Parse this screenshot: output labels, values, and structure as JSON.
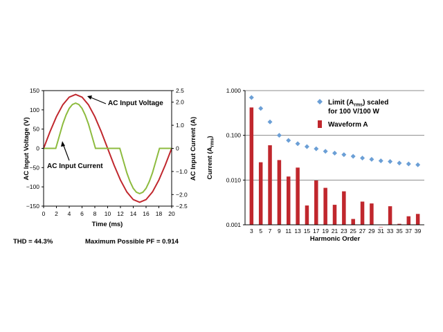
{
  "colors": {
    "voltage": "#c0272d",
    "current": "#8dbb3e",
    "harmonic_bar": "#c0272d",
    "limit_marker": "#6b9fd6",
    "grid": "#8c8c8c",
    "axis": "#000000"
  },
  "footer": {
    "thd": "THD = 44.3%",
    "pf": "Maximum Possible PF = 0.914"
  },
  "chart_data": [
    {
      "type": "line",
      "xlabel": "Time (ms)",
      "ylabel": "AC Input Voltage (V)",
      "y2label": "AC Input Current (A)",
      "xlim": [
        0,
        20
      ],
      "ylim": [
        -150,
        150
      ],
      "y2lim": [
        -2.5,
        2.5
      ],
      "x_ticks": [
        "0",
        "2",
        "4",
        "6",
        "8",
        "10",
        "12",
        "14",
        "16",
        "18",
        "20"
      ],
      "y_ticks": [
        "150",
        "100",
        "50",
        "0",
        "−50",
        "−100",
        "−150"
      ],
      "y2_ticks": [
        "2.5",
        "2.0",
        "1.0",
        "0",
        "−1.0",
        "−2.0",
        "−2.5"
      ],
      "grid": false,
      "annotations": [
        {
          "text": "AC Input Voltage",
          "target_series": 0
        },
        {
          "text": "AC Input Current",
          "target_series": 1
        }
      ],
      "series": [
        {
          "name": "AC Input Voltage",
          "axis": "left",
          "x": [
            0,
            1,
            2,
            3,
            4,
            5,
            6,
            7,
            8,
            9,
            10,
            11,
            12,
            13,
            14,
            15,
            16,
            17,
            18,
            19,
            20
          ],
          "y": [
            0,
            43.3,
            82.3,
            113.3,
            133.1,
            140,
            133.1,
            113.3,
            82.3,
            43.3,
            0,
            -43.3,
            -82.3,
            -113.3,
            -133.1,
            -140,
            -133.1,
            -113.3,
            -82.3,
            -43.3,
            0
          ]
        },
        {
          "name": "AC Input Current",
          "axis": "right",
          "x": [
            0,
            1.9,
            2.5,
            3,
            3.5,
            4,
            4.5,
            5,
            5.5,
            6,
            6.5,
            7,
            7.5,
            8.1,
            10,
            11.9,
            12.5,
            13,
            13.5,
            14,
            14.5,
            15,
            15.5,
            16,
            16.5,
            17,
            17.5,
            18.1,
            20
          ],
          "y": [
            0,
            0,
            0.58,
            1.06,
            1.44,
            1.73,
            1.9,
            1.96,
            1.9,
            1.73,
            1.44,
            1.06,
            0.58,
            0,
            0,
            0,
            -0.58,
            -1.06,
            -1.44,
            -1.73,
            -1.9,
            -1.96,
            -1.9,
            -1.73,
            -1.44,
            -1.06,
            -0.58,
            0,
            0
          ]
        }
      ]
    },
    {
      "type": "bar",
      "yscale": "log",
      "ylim": [
        0.001,
        1
      ],
      "y_ticks": [
        "1.000",
        "0.100",
        "0.010",
        "0.001"
      ],
      "ylabel": "Current (A",
      "ylabel_sub": "rms",
      "ylabel_end": ")",
      "xlabel": "Harmonic Order",
      "grid": true,
      "categories": [
        "3",
        "5",
        "7",
        "9",
        "11",
        "13",
        "15",
        "17",
        "19",
        "21",
        "23",
        "25",
        "27",
        "29",
        "31",
        "33",
        "35",
        "37",
        "39"
      ],
      "legend": {
        "placement": "top-right",
        "limit_line1_a": "Limit (A",
        "limit_line1_sub": "rms",
        "limit_line1_b": ") scaled",
        "limit_line2": "for 100 V/100 W",
        "bar_label": "Waveform A"
      },
      "series": [
        {
          "name": "Waveform A",
          "kind": "bar",
          "values": [
            0.42,
            0.025,
            0.06,
            0.028,
            0.012,
            0.019,
            0.0027,
            0.0098,
            0.0067,
            0.0028,
            0.0056,
            0.00135,
            0.0033,
            0.003,
            0.0009,
            0.0026,
            0.00105,
            0.00155,
            0.00175
          ]
        },
        {
          "name": "Limit (Arms) scaled for 100 V/100 W",
          "kind": "marker",
          "values": [
            0.7,
            0.4,
            0.2,
            0.1,
            0.077,
            0.065,
            0.056,
            0.05,
            0.044,
            0.04,
            0.037,
            0.034,
            0.031,
            0.029,
            0.027,
            0.026,
            0.024,
            0.023,
            0.022
          ]
        }
      ]
    }
  ]
}
